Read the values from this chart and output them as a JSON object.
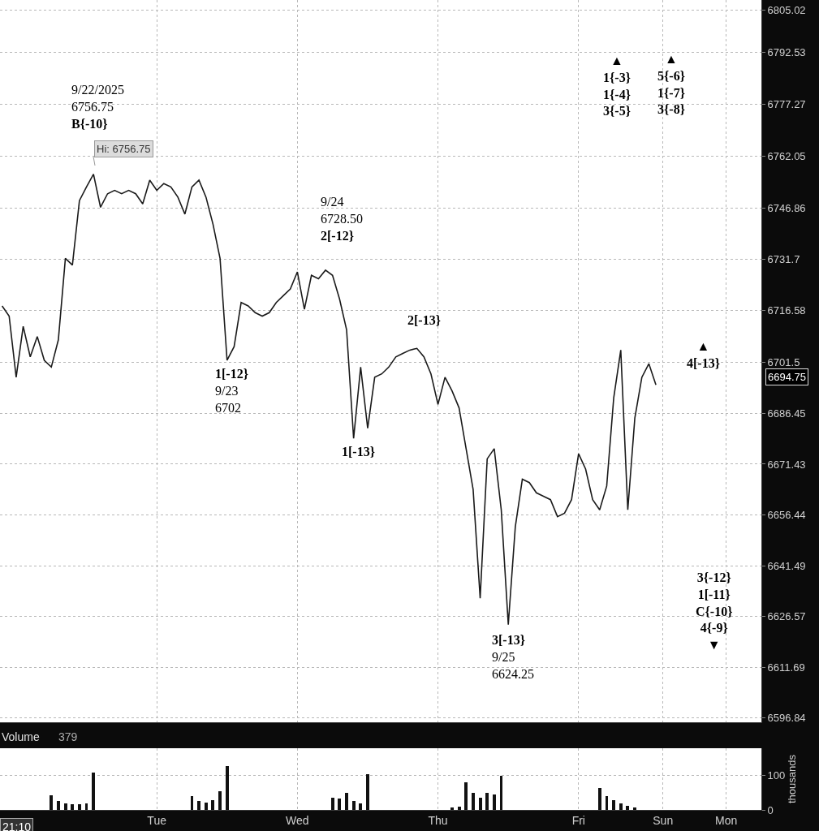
{
  "chart_data": [
    {
      "type": "line",
      "grid": true,
      "tick_labels": "y",
      "marker": "none",
      "line_style": "solid",
      "categories": [
        null,
        null,
        null,
        null,
        null,
        null,
        null,
        null,
        null,
        null,
        null,
        null,
        null,
        null,
        null,
        null,
        null,
        null,
        null,
        null,
        null,
        null,
        "Tue",
        null,
        null,
        null,
        null,
        null,
        null,
        null,
        null,
        null,
        null,
        null,
        null,
        null,
        null,
        null,
        null,
        null,
        null,
        null,
        "Wed",
        null,
        null,
        null,
        null,
        null,
        null,
        null,
        null,
        null,
        null,
        null,
        null,
        null,
        null,
        null,
        null,
        null,
        null,
        null,
        "Thu",
        null,
        null,
        null,
        null,
        null,
        null,
        null,
        null,
        null,
        null,
        null,
        null,
        null,
        null,
        null,
        null,
        null,
        null,
        null,
        "Fri",
        null,
        null,
        null,
        null,
        null,
        null,
        null,
        null,
        null,
        null,
        null,
        "Sun",
        null,
        null,
        null,
        null,
        null,
        null,
        null,
        null,
        "Mon",
        null,
        null,
        null,
        null,
        null
      ],
      "ylim": [
        6595.5,
        6808
      ],
      "yticks": [
        6596.84,
        6611.69,
        6626.57,
        6641.49,
        6656.44,
        6671.43,
        6686.45,
        6701.5,
        6716.58,
        6731.7,
        6746.86,
        6762.05,
        6777.27,
        6792.53,
        6805.02
      ],
      "series": [
        {
          "color": "#1a1a1a",
          "values": [
            6718,
            6715,
            6697,
            6712,
            6703,
            6709,
            6702,
            6700,
            6708,
            6732,
            6730,
            6749,
            6753,
            6756.75,
            6747,
            6751,
            6752,
            6751,
            6752,
            6751,
            6748,
            6755,
            6752,
            6754,
            6753,
            6750,
            6745,
            6753,
            6755,
            6750,
            6742,
            6732,
            6702,
            6706,
            6719,
            6718,
            6716,
            6715,
            6716,
            6719,
            6721,
            6723,
            6728,
            6717,
            6727,
            6726,
            6728.5,
            6727,
            6720,
            6711,
            6679,
            6700,
            6682,
            6697,
            6698,
            6700,
            6703,
            6704,
            6705,
            6705.5,
            6703,
            6698,
            6689,
            6697,
            6693,
            6688,
            6676,
            6664,
            6632,
            6673,
            6676,
            6658,
            6624.25,
            6653,
            6667,
            6666,
            6663,
            6662,
            6661,
            6656,
            6657,
            6661,
            6674.5,
            6670,
            6661,
            6658,
            6665,
            6691,
            6705,
            6658,
            6685,
            6697,
            6701,
            6694.75,
            null,
            null,
            null,
            null,
            null,
            null,
            null,
            null,
            null,
            null,
            null,
            null,
            null,
            null,
            null
          ]
        }
      ],
      "annotations": [
        "Hi: 6756.75",
        "9/22/2025\n6756.75\nB{-10}",
        "1[-12}\n9/23\n6702",
        "9/24\n6728.50\n2[-12}",
        "1[-13}",
        "2[-13}",
        "3[-13}\n9/25\n6624.25",
        "6694.75",
        "▲\n1{-3}\n1{-4}\n3{-5}",
        "▲\n5{-6}\n1{-7}\n3{-8}",
        "▲\n4[-13}",
        "3{-12}\n1[-11}\nC{-10}\n4{-9}\n▼"
      ]
    },
    {
      "type": "bar",
      "grid": true,
      "color": "#111111",
      "ylabel": "thousands",
      "categories": [
        null,
        null,
        null,
        null,
        null,
        null,
        null,
        null,
        null,
        null,
        null,
        null,
        null,
        null,
        null,
        null,
        null,
        null,
        null,
        null,
        null,
        null,
        "Tue",
        null,
        null,
        null,
        null,
        null,
        null,
        null,
        null,
        null,
        null,
        null,
        null,
        null,
        null,
        null,
        null,
        null,
        null,
        null,
        "Wed",
        null,
        null,
        null,
        null,
        null,
        null,
        null,
        null,
        null,
        null,
        null,
        null,
        null,
        null,
        null,
        null,
        null,
        null,
        null,
        "Thu",
        null,
        null,
        null,
        null,
        null,
        null,
        null,
        null,
        null,
        null,
        null,
        null,
        null,
        null,
        null,
        null,
        null,
        null,
        null,
        "Fri",
        null,
        null,
        null,
        null,
        null,
        null,
        null,
        null,
        null,
        null,
        null,
        "Sun",
        null,
        null,
        null,
        null,
        null,
        null,
        null,
        null,
        "Mon",
        null,
        null,
        null,
        null,
        null
      ],
      "ylim": [
        0,
        180
      ],
      "yticks": [
        0,
        100
      ],
      "values": [
        null,
        null,
        null,
        null,
        null,
        null,
        null,
        42,
        25,
        20,
        17,
        16,
        18,
        108,
        null,
        null,
        null,
        null,
        null,
        null,
        null,
        null,
        null,
        null,
        null,
        null,
        null,
        40,
        25,
        21,
        28,
        55,
        129,
        null,
        null,
        null,
        null,
        null,
        null,
        null,
        null,
        null,
        null,
        null,
        null,
        null,
        null,
        35,
        32,
        50,
        25,
        20,
        105,
        null,
        null,
        null,
        null,
        null,
        null,
        null,
        null,
        null,
        null,
        null,
        6,
        10,
        80,
        50,
        35,
        50,
        45,
        100,
        null,
        null,
        null,
        null,
        null,
        null,
        null,
        null,
        null,
        null,
        null,
        null,
        null,
        65,
        40,
        28,
        18,
        12,
        8,
        null,
        null,
        null,
        null,
        null,
        null,
        null,
        null,
        null,
        null,
        null,
        null,
        null,
        null,
        null,
        null,
        null,
        null
      ],
      "annotations": [
        "Volume",
        "379",
        "21:10"
      ]
    }
  ]
}
